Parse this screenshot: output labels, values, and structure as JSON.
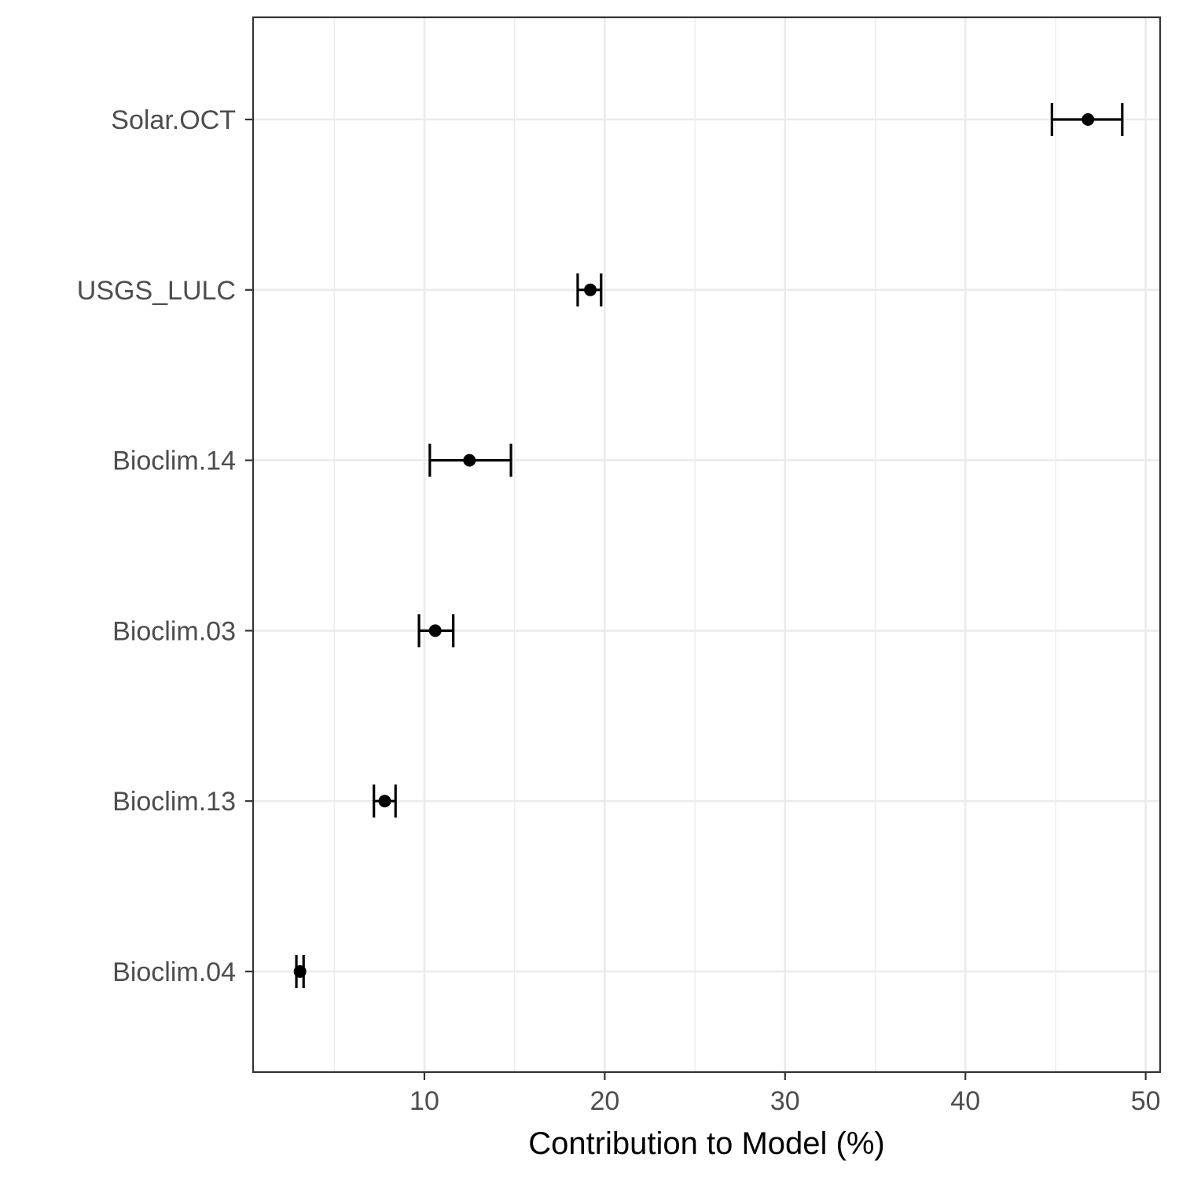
{
  "chart_data": {
    "type": "scatter",
    "variant": "dot-with-error-bars",
    "title": "",
    "xlabel": "Contribution to Model (%)",
    "ylabel": "",
    "xlim": [
      0.5,
      50.8
    ],
    "xticks": [
      10,
      20,
      30,
      40,
      50
    ],
    "x_minor_gridlines": [
      5,
      15,
      25,
      35,
      45
    ],
    "grid": true,
    "legend": "none",
    "categories": [
      "Solar.OCT",
      "USGS_LULC",
      "Bioclim.14",
      "Bioclim.03",
      "Bioclim.13",
      "Bioclim.04"
    ],
    "series": [
      {
        "values": [
          46.8,
          19.2,
          12.5,
          10.6,
          7.8,
          3.1
        ],
        "lower": [
          44.8,
          18.5,
          10.3,
          9.7,
          7.2,
          2.9
        ],
        "upper": [
          48.7,
          19.8,
          14.8,
          11.6,
          8.4,
          3.3
        ]
      }
    ],
    "colors": {
      "point": "#000000",
      "errorbar": "#000000",
      "grid_major": "#ebebeb",
      "grid_minor": "#ebebeb",
      "panel_border": "#333333",
      "tick_text": "#4d4d4d",
      "axis_title": "#000000"
    }
  }
}
